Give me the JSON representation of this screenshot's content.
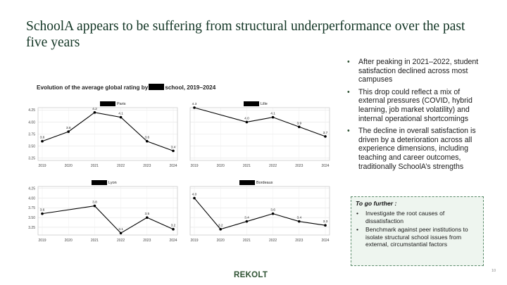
{
  "title": "SchoolA appears to be suffering from structural underperformance over the past five years",
  "chart_title_before": "Evolution of the average global rating by",
  "chart_title_after": "school, 2019–2024",
  "colors": {
    "title": "#123524",
    "accent": "#2f5233",
    "box_bg": "#eef5ef",
    "box_border": "#5a8a6a",
    "line": "#000000"
  },
  "chart_data": [
    {
      "type": "line",
      "panel_label": "Paris",
      "x": [
        "2019",
        "2020",
        "2021",
        "2022",
        "2023",
        "2024"
      ],
      "values": [
        3.6,
        3.8,
        4.2,
        4.1,
        3.6,
        3.4
      ],
      "data_labels": [
        "3.6",
        "3.8",
        "4.2",
        "4.1",
        "3.6",
        "3.4"
      ],
      "y_ticks": [
        "3.25",
        "3.50",
        "3.75",
        "4.00",
        "4.25"
      ],
      "ylim": [
        3.2,
        4.3
      ]
    },
    {
      "type": "line",
      "panel_label": "Lille",
      "x": [
        "2019",
        "2020",
        "2021",
        "2022",
        "2023",
        "2024"
      ],
      "values": [
        4.3,
        null,
        4.0,
        4.1,
        3.9,
        3.7
      ],
      "data_labels": [
        "4.3",
        "",
        "4.0",
        "4.1",
        "3.9",
        "3.7"
      ],
      "ylim": [
        3.2,
        4.3
      ]
    },
    {
      "type": "line",
      "panel_label": "Lyon",
      "x": [
        "2019",
        "2020",
        "2021",
        "2022",
        "2023",
        "2024"
      ],
      "values": [
        3.6,
        null,
        3.8,
        3.1,
        3.5,
        3.2
      ],
      "data_labels": [
        "3.6",
        "",
        "3.8",
        "3.1",
        "3.5",
        "3.2"
      ],
      "y_ticks": [
        "3.25",
        "3.50",
        "3.75",
        "4.00",
        "4.25"
      ],
      "ylim": [
        3.05,
        4.3
      ]
    },
    {
      "type": "line",
      "panel_label": "Bordeaux",
      "x": [
        "2019",
        "2020",
        "2021",
        "2022",
        "2023",
        "2024"
      ],
      "values": [
        4.0,
        3.2,
        3.4,
        3.6,
        3.4,
        3.3
      ],
      "data_labels": [
        "4.0",
        "3.2",
        "3.4",
        "3.6",
        "3.4",
        "3.3"
      ],
      "ylim": [
        3.05,
        4.3
      ]
    }
  ],
  "bullets": [
    "After peaking in 2021–2022, student satisfaction declined across most campuses",
    "This drop could reflect a mix of external pressures (COVID, hybrid learning, job market volatility) and internal operational shortcomings",
    "The decline in overall satisfaction is driven by a deterioration across all experience dimensions, including teaching and career outcomes, traditionally SchoolA’s strengths"
  ],
  "further": {
    "title": "To go further :",
    "items": [
      "Investigate the root causes of dissatisfaction",
      "Benchmark against peer institutions to isolate structural school issues from external, circumstantial factors"
    ]
  },
  "logo": "REKOLT",
  "page_number": "10"
}
